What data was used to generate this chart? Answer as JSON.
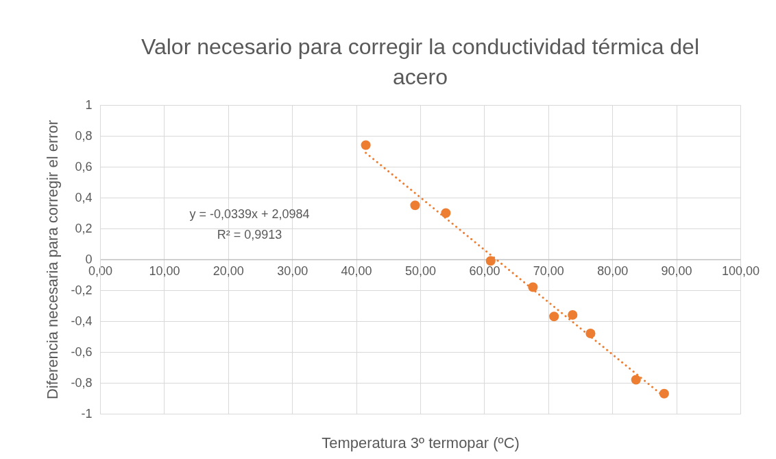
{
  "chart_data": {
    "type": "scatter",
    "title": "Valor necesario para corregir la conductividad térmica del acero",
    "xlabel": "Temperatura 3º termopar (ºC)",
    "ylabel": "Diferencia necesaria para corregir el error",
    "series": [
      {
        "color": "#ed7d31",
        "marker": "circle",
        "x": [
          41.5,
          49.2,
          54.0,
          61.0,
          67.6,
          70.9,
          73.8,
          76.6,
          83.7,
          88.1
        ],
        "values": [
          0.74,
          0.35,
          0.3,
          -0.01,
          -0.18,
          -0.37,
          -0.36,
          -0.48,
          -0.78,
          -0.87
        ]
      },
      {
        "type": "line",
        "color": "#ed7d31",
        "line_style": "dotted",
        "x": [
          41.5,
          88.1
        ],
        "values": [
          0.69,
          -0.89
        ]
      }
    ],
    "annotations": [
      "y = -0,0339x + 2,0984",
      "R² = 0,9913"
    ],
    "xlim": [
      0,
      100
    ],
    "ylim": [
      -1,
      1
    ],
    "xticks": [
      {
        "value": 0,
        "label": "0,00"
      },
      {
        "value": 10,
        "label": "10,00"
      },
      {
        "value": 20,
        "label": "20,00"
      },
      {
        "value": 30,
        "label": "30,00"
      },
      {
        "value": 40,
        "label": "40,00"
      },
      {
        "value": 50,
        "label": "50,00"
      },
      {
        "value": 60,
        "label": "60,00"
      },
      {
        "value": 70,
        "label": "70,00"
      },
      {
        "value": 80,
        "label": "80,00"
      },
      {
        "value": 90,
        "label": "90,00"
      },
      {
        "value": 100,
        "label": "100,00"
      }
    ],
    "yticks": [
      {
        "value": -1,
        "label": "-1"
      },
      {
        "value": -0.8,
        "label": "-0,8"
      },
      {
        "value": -0.6,
        "label": "-0,6"
      },
      {
        "value": -0.4,
        "label": "-0,4"
      },
      {
        "value": -0.2,
        "label": "-0,2"
      },
      {
        "value": 0,
        "label": "0"
      },
      {
        "value": 0.2,
        "label": "0,2"
      },
      {
        "value": 0.4,
        "label": "0,4"
      },
      {
        "value": 0.6,
        "label": "0,6"
      },
      {
        "value": 0.8,
        "label": "0,8"
      },
      {
        "value": 1,
        "label": "1"
      }
    ],
    "grid": true
  }
}
